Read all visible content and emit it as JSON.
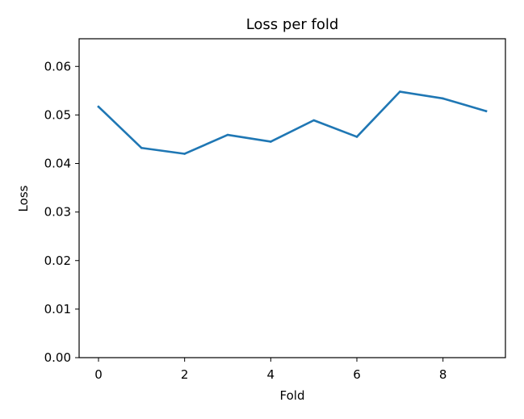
{
  "chart_data": {
    "type": "line",
    "title": "Loss per fold",
    "xlabel": "Fold",
    "ylabel": "Loss",
    "x": [
      0,
      1,
      2,
      3,
      4,
      5,
      6,
      7,
      8,
      9
    ],
    "series": [
      {
        "values": [
          0.0517,
          0.0432,
          0.042,
          0.0459,
          0.0445,
          0.0489,
          0.0455,
          0.0548,
          0.0534,
          0.0508
        ],
        "color": "#1f77b4"
      }
    ],
    "xlim": [
      -0.45,
      9.45
    ],
    "ylim": [
      0,
      0.0657
    ],
    "xticks": [
      0,
      2,
      4,
      6,
      8
    ],
    "xtick_labels": [
      "0",
      "2",
      "4",
      "6",
      "8"
    ],
    "yticks": [
      0,
      0.01,
      0.02,
      0.03,
      0.04,
      0.05,
      0.06
    ],
    "ytick_labels": [
      "0.00",
      "0.01",
      "0.02",
      "0.03",
      "0.04",
      "0.05",
      "0.06"
    ],
    "grid": false,
    "legend": false
  }
}
